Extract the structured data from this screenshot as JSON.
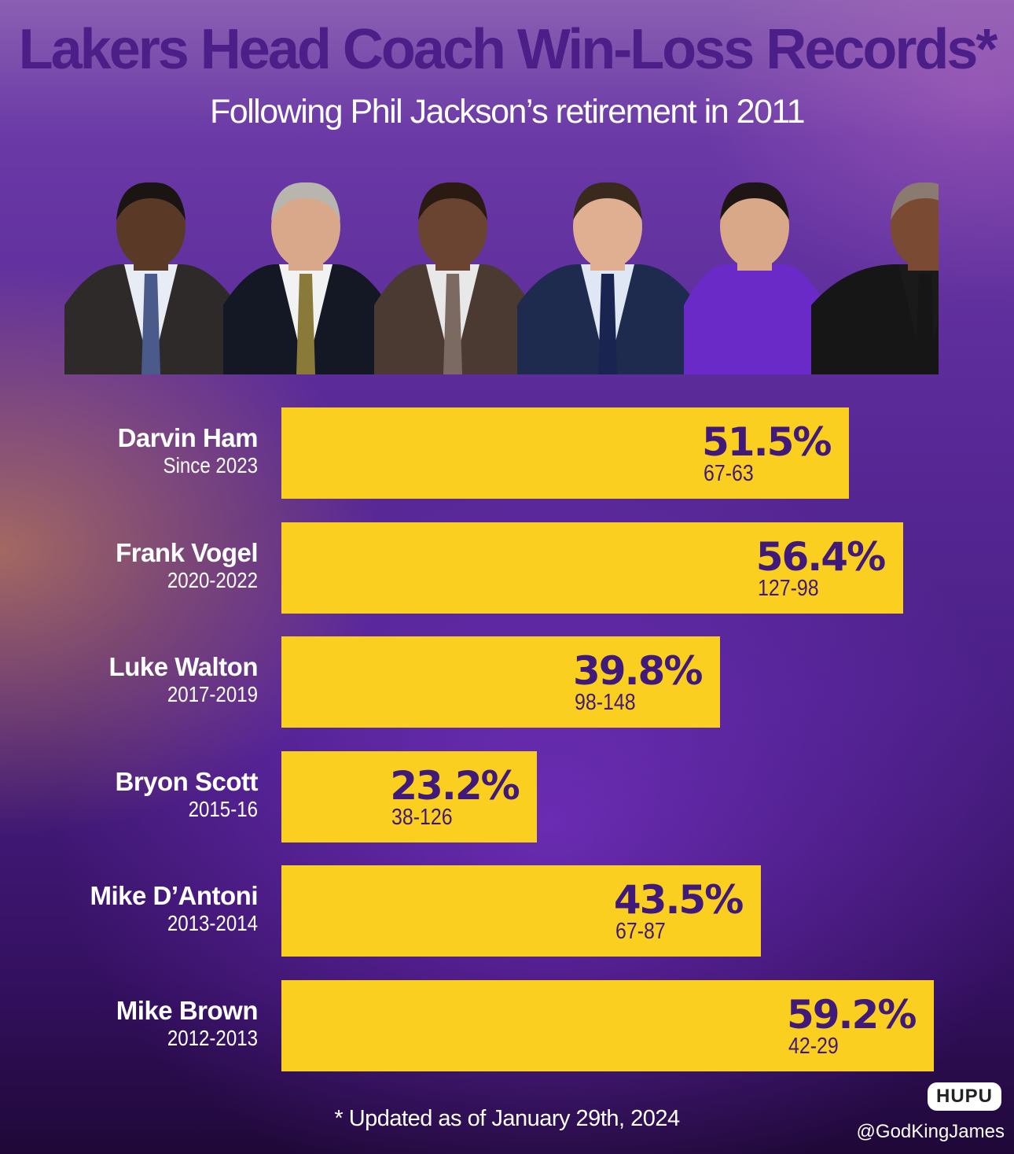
{
  "colors": {
    "bar": "#fbcf1f",
    "title": "#4b1e88",
    "bar_text": "#3f1a7a",
    "background": "#5a2a98"
  },
  "chart_data": {
    "type": "bar",
    "orientation": "horizontal",
    "title": "Lakers Head Coach Win-Loss Records*",
    "subtitle": "Following Phil Jackson’s retirement in 2011",
    "xlim": [
      0,
      65
    ],
    "grid": false,
    "rows": [
      {
        "name": "Darvin Ham",
        "years": "Since 2023",
        "value": 51.5,
        "label": "51.5%",
        "record": "67-63"
      },
      {
        "name": "Frank Vogel",
        "years": "2020-2022",
        "value": 56.4,
        "label": "56.4%",
        "record": "127-98"
      },
      {
        "name": "Luke Walton",
        "years": "2017-2019",
        "value": 39.8,
        "label": "39.8%",
        "record": "98-148"
      },
      {
        "name": "Bryon Scott",
        "years": "2015-16",
        "value": 23.2,
        "label": "23.2%",
        "record": "38-126"
      },
      {
        "name": "Mike D’Antoni",
        "years": "2013-2014",
        "value": 43.5,
        "label": "43.5%",
        "record": "67-87"
      },
      {
        "name": "Mike Brown",
        "years": "2012-2013",
        "value": 59.2,
        "label": "59.2%",
        "record": "42-29"
      }
    ],
    "footnote": "* Updated as of January 29th, 2024"
  },
  "photos": [
    {
      "shirt": "#e8ecf4",
      "jacket": "#2e2a2a",
      "tie": "#4a5a8a",
      "skin": "#5a3a26",
      "hair": "#1a1412",
      "icon": "coach-photo-1"
    },
    {
      "shirt": "#f2f2f2",
      "jacket": "#141824",
      "tie": "#8a7a3a",
      "skin": "#d9a88a",
      "hair": "#b8b4ae",
      "icon": "coach-photo-2"
    },
    {
      "shirt": "#e8e8e8",
      "jacket": "#4a3a32",
      "tie": "#7a6a62",
      "skin": "#6a4430",
      "hair": "#2a1a12",
      "icon": "coach-photo-3"
    },
    {
      "shirt": "#dfe6f4",
      "jacket": "#1e2a4e",
      "tie": "#1a2450",
      "skin": "#e0ae90",
      "hair": "#3a2a1e",
      "icon": "coach-photo-4"
    },
    {
      "shirt": "#6a2ac8",
      "jacket": "#6a2ac8",
      "tie": "#6a2ac8",
      "skin": "#d8a888",
      "hair": "#1e1614",
      "icon": "coach-photo-5"
    },
    {
      "shirt": "#1a1a1a",
      "jacket": "#161616",
      "tie": "#161616",
      "skin": "#7a4a32",
      "hair": "#8a7a70",
      "icon": "coach-photo-6"
    }
  ],
  "branding": {
    "logo_text": "HUPU",
    "watermark": "@GodKingJames"
  }
}
